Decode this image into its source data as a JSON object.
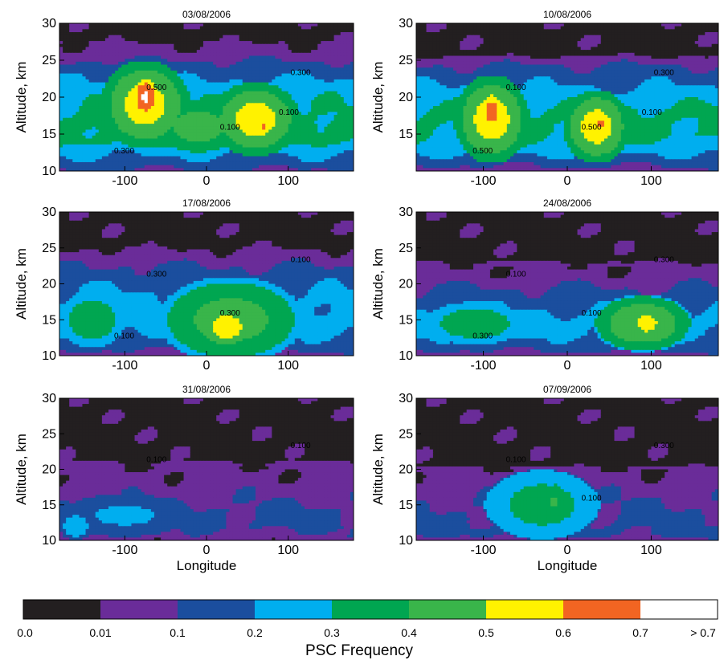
{
  "chart_data": {
    "type": "heatmap",
    "panels": [
      {
        "title": "03/08/2006",
        "ylabel": "Altitude, km",
        "xlabel": "",
        "yticks": [
          10,
          15,
          20,
          25,
          30
        ],
        "xticks": [
          -100,
          0,
          100
        ],
        "xlim": [
          -180,
          180
        ],
        "ylim": [
          10,
          30
        ],
        "contour_labels": [
          "0.500",
          "0.300",
          "0.100",
          "0.300",
          "0.100"
        ],
        "blobs": [
          [
            -75,
            19,
            55,
            6,
            0.55
          ],
          [
            60,
            17,
            55,
            5,
            0.55
          ],
          [
            -10,
            16,
            60,
            4,
            0.45
          ],
          [
            -75,
            20,
            18,
            3,
            0.72
          ],
          [
            70,
            16,
            10,
            1,
            0.62
          ]
        ],
        "base": [
          [
            10,
            0.08
          ],
          [
            11,
            0.15
          ],
          [
            13,
            0.25
          ],
          [
            14,
            0.33
          ],
          [
            16,
            0.35
          ],
          [
            18,
            0.3
          ],
          [
            20,
            0.28
          ],
          [
            22,
            0.22
          ],
          [
            24,
            0.15
          ],
          [
            26,
            0.05
          ],
          [
            27.5,
            0.01
          ]
        ]
      },
      {
        "title": "10/08/2006",
        "ylabel": "Altitude, km",
        "xlabel": "",
        "yticks": [
          15,
          20,
          25,
          30
        ],
        "xticks": [
          -100,
          0,
          100
        ],
        "xlim": [
          -180,
          180
        ],
        "ylim": [
          10,
          30
        ],
        "contour_labels": [
          "0.100",
          "0.300",
          "0.500",
          "0.500",
          "0.100"
        ],
        "blobs": [
          [
            -90,
            17,
            45,
            6,
            0.55
          ],
          [
            35,
            16,
            40,
            5,
            0.55
          ],
          [
            -90,
            18,
            15,
            3,
            0.66
          ],
          [
            40,
            16.5,
            8,
            2,
            0.63
          ]
        ],
        "base": [
          [
            10,
            0.05
          ],
          [
            11,
            0.12
          ],
          [
            13,
            0.25
          ],
          [
            15,
            0.32
          ],
          [
            18,
            0.33
          ],
          [
            20,
            0.25
          ],
          [
            22,
            0.18
          ],
          [
            24,
            0.12
          ],
          [
            25.5,
            0.02
          ]
        ]
      },
      {
        "title": "17/08/2006",
        "ylabel": "Altitude, km",
        "xlabel": "",
        "yticks": [
          10,
          15,
          20,
          25,
          30
        ],
        "xticks": [
          -100,
          0,
          100
        ],
        "xlim": [
          -180,
          180
        ],
        "ylim": [
          10,
          30
        ],
        "contour_labels": [
          "0.300",
          "0.100",
          "0.300",
          "0.100"
        ],
        "blobs": [
          [
            30,
            15,
            90,
            6,
            0.45
          ],
          [
            25,
            14,
            35,
            3,
            0.57
          ],
          [
            -140,
            15,
            40,
            4,
            0.38
          ]
        ],
        "base": [
          [
            10,
            0.05
          ],
          [
            11,
            0.12
          ],
          [
            13,
            0.22
          ],
          [
            15,
            0.25
          ],
          [
            18,
            0.22
          ],
          [
            20,
            0.18
          ],
          [
            22,
            0.12
          ],
          [
            24,
            0.05
          ],
          [
            25,
            0.01
          ]
        ]
      },
      {
        "title": "24/08/2006",
        "ylabel": "Altitude, km",
        "xlabel": "",
        "yticks": [
          10,
          15,
          20,
          25,
          30
        ],
        "xticks": [
          -100,
          0,
          100
        ],
        "xlim": [
          -180,
          180
        ],
        "ylim": [
          10,
          30
        ],
        "contour_labels": [
          "0.100",
          "0.300",
          "0.100",
          "0.300"
        ],
        "blobs": [
          [
            90,
            14.5,
            60,
            4,
            0.5
          ],
          [
            95,
            14.5,
            20,
            2,
            0.58
          ],
          [
            -110,
            14.5,
            60,
            3,
            0.38
          ]
        ],
        "base": [
          [
            10,
            0.05
          ],
          [
            11,
            0.12
          ],
          [
            13,
            0.22
          ],
          [
            15,
            0.24
          ],
          [
            17,
            0.18
          ],
          [
            19,
            0.12
          ],
          [
            21,
            0.05
          ],
          [
            23,
            0.01
          ]
        ]
      },
      {
        "title": "31/08/2006",
        "ylabel": "Altitude, km",
        "xlabel": "Longitude",
        "yticks": [
          10,
          15,
          20,
          25,
          30
        ],
        "xticks": [
          -100,
          0,
          100
        ],
        "xlim": [
          -180,
          180
        ],
        "ylim": [
          10,
          30
        ],
        "contour_labels": [
          "0.100",
          "0.100"
        ],
        "blobs": [
          [
            -100,
            13.5,
            80,
            3,
            0.22
          ],
          [
            -160,
            12,
            20,
            2,
            0.27
          ]
        ],
        "base": [
          [
            10,
            0.05
          ],
          [
            12,
            0.12
          ],
          [
            14,
            0.12
          ],
          [
            16,
            0.08
          ],
          [
            18,
            0.05
          ],
          [
            20,
            0.03
          ],
          [
            21,
            0.01
          ]
        ]
      },
      {
        "title": "07/09/2006",
        "ylabel": "Altitude, km",
        "xlabel": "Longitude",
        "yticks": [
          10,
          15,
          20,
          25,
          30
        ],
        "xticks": [
          -100,
          0,
          100
        ],
        "xlim": [
          -180,
          180
        ],
        "ylim": [
          10,
          30
        ],
        "contour_labels": [
          "0.100",
          "0.300",
          "0.100"
        ],
        "blobs": [
          [
            -30,
            15,
            70,
            5,
            0.35
          ],
          [
            -15,
            15.5,
            20,
            3,
            0.41
          ]
        ],
        "base": [
          [
            10,
            0.05
          ],
          [
            11,
            0.12
          ],
          [
            13,
            0.12
          ],
          [
            15,
            0.1
          ],
          [
            17,
            0.07
          ],
          [
            19,
            0.04
          ],
          [
            20.5,
            0.01
          ]
        ]
      }
    ],
    "colorbar": {
      "title": "PSC Frequency",
      "levels": [
        0.0,
        0.01,
        0.1,
        0.2,
        0.3,
        0.4,
        0.5,
        0.6,
        0.7
      ],
      "tick_labels": [
        "0.0",
        "0.01",
        "0.1",
        "0.2",
        "0.3",
        "0.4",
        "0.5",
        "0.6",
        "0.7",
        "> 0.7"
      ],
      "colors": [
        "#231f20",
        "#6a2c99",
        "#1b4e9e",
        "#00aeef",
        "#00a651",
        "#39b54a",
        "#fff200",
        "#f26522",
        "#ffffff"
      ]
    }
  }
}
